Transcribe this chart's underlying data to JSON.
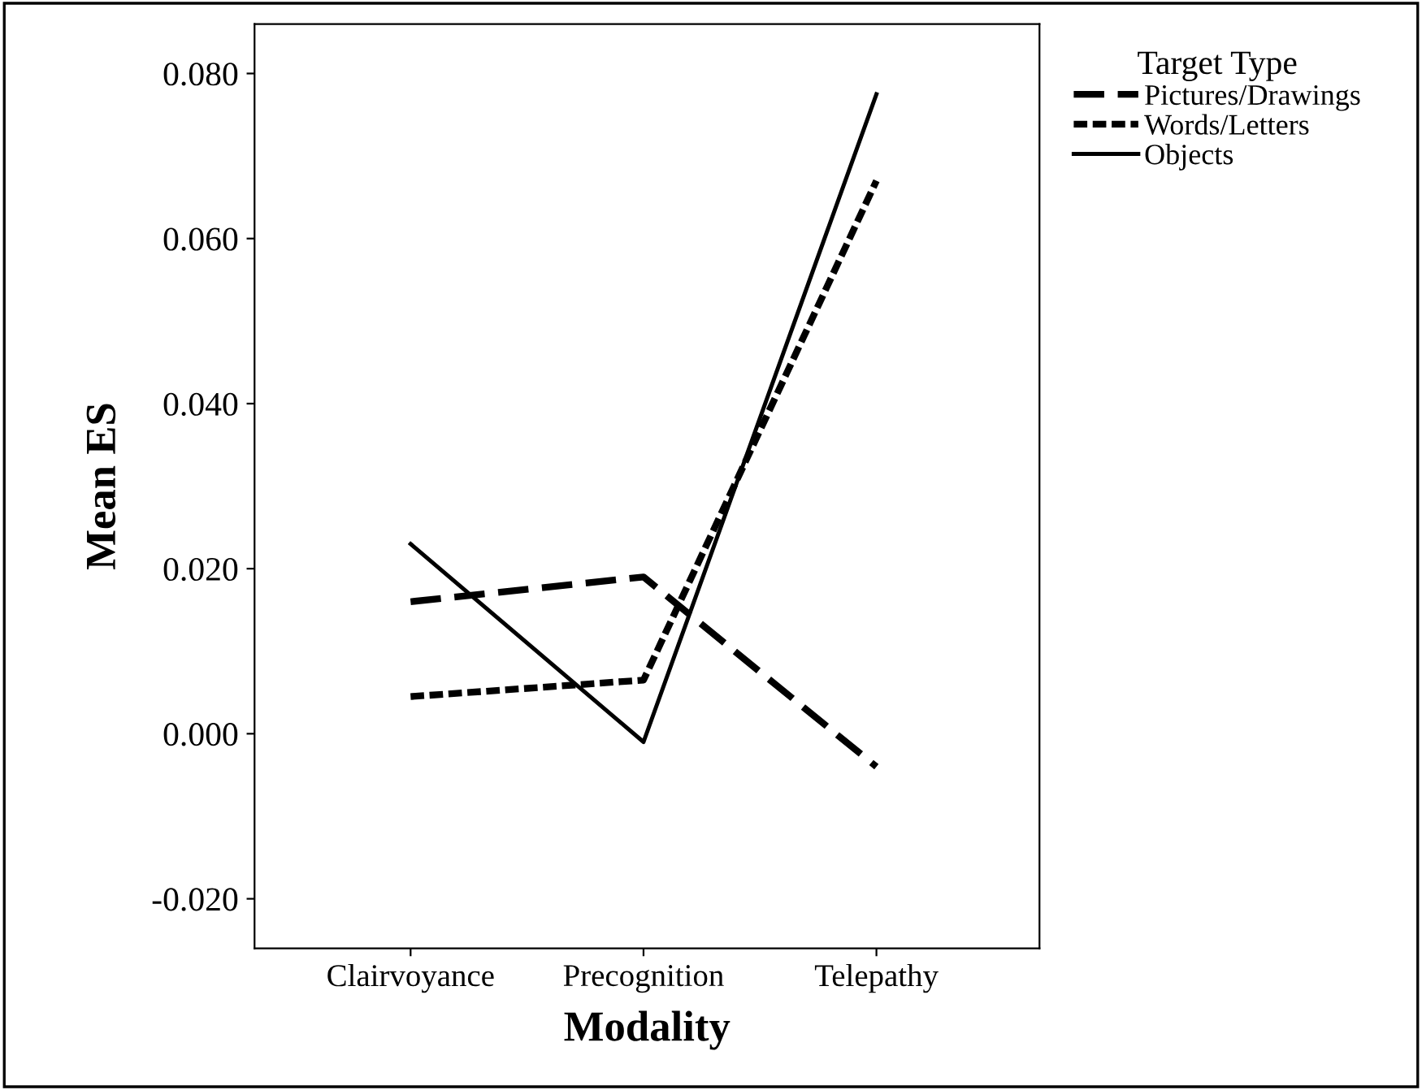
{
  "chart_data": {
    "type": "line",
    "xlabel": "Modality",
    "ylabel": "Mean ES",
    "legend_title": "Target Type",
    "categories": [
      "Clairvoyance",
      "Precognition",
      "Telepathy"
    ],
    "series": [
      {
        "name": "Pictures/Drawings",
        "color": "#000000",
        "line_style": "dashed",
        "values": [
          0.016,
          0.019,
          -0.004
        ]
      },
      {
        "name": "Words/Letters",
        "color": "#000000",
        "line_style": "dotted",
        "values": [
          0.0045,
          0.0065,
          0.067
        ]
      },
      {
        "name": "Objects",
        "color": "#000000",
        "line_style": "solid",
        "values": [
          0.023,
          -0.001,
          0.0775
        ]
      }
    ],
    "ylim": [
      -0.026,
      0.086
    ],
    "yticks": [
      {
        "value": -0.02,
        "label": "-0.020"
      },
      {
        "value": 0,
        "label": "0.000"
      },
      {
        "value": 0.02,
        "label": "0.020"
      },
      {
        "value": 0.04,
        "label": "0.040"
      },
      {
        "value": 0.06,
        "label": "0.060"
      },
      {
        "value": 0.08,
        "label": "0.080"
      }
    ],
    "legend": "top right",
    "grid": false,
    "marker": "none"
  }
}
